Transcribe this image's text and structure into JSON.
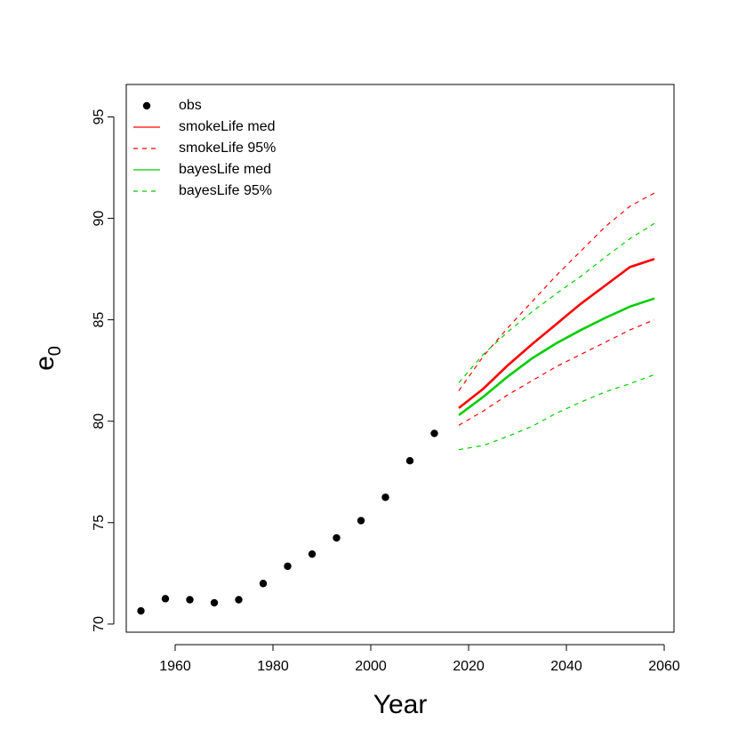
{
  "chart_data": {
    "type": "line",
    "xlabel": "Year",
    "ylabel_base": "e",
    "ylabel_sub": "0",
    "xlim": [
      1950,
      2062
    ],
    "ylim": [
      69.6,
      96.6
    ],
    "x_ticks": [
      "1960",
      "1980",
      "2000",
      "2020",
      "2040",
      "2060"
    ],
    "y_ticks": [
      "70",
      "75",
      "80",
      "85",
      "90",
      "95"
    ],
    "legend_position": "top-left",
    "grid": false,
    "series": [
      {
        "name": "obs",
        "kind": "points",
        "color": "#000000",
        "x": [
          1953,
          1958,
          1963,
          1968,
          1973,
          1978,
          1983,
          1988,
          1993,
          1998,
          2003,
          2008,
          2013
        ],
        "y": [
          70.65,
          71.25,
          71.2,
          71.05,
          71.2,
          72.0,
          72.85,
          73.45,
          74.25,
          75.1,
          76.25,
          78.05,
          79.4
        ]
      },
      {
        "name": "smokeLife med",
        "kind": "line",
        "dash": "solid",
        "color": "#ff0000",
        "x": [
          2018,
          2023,
          2028,
          2033,
          2038,
          2043,
          2048,
          2053,
          2058
        ],
        "y": [
          80.65,
          81.6,
          82.75,
          83.8,
          84.8,
          85.8,
          86.7,
          87.6,
          88.0
        ]
      },
      {
        "name": "smokeLife 95%",
        "kind": "line",
        "dash": "dashed",
        "color": "#ff0000",
        "x": [
          2018,
          2023,
          2028,
          2033,
          2038,
          2043,
          2048,
          2053,
          2058
        ],
        "y_upper": [
          81.5,
          83.2,
          84.6,
          85.9,
          87.2,
          88.4,
          89.6,
          90.6,
          91.25
        ],
        "y_lower": [
          79.8,
          80.5,
          81.3,
          82.0,
          82.7,
          83.3,
          83.9,
          84.5,
          85.0
        ]
      },
      {
        "name": "bayesLife med",
        "kind": "line",
        "dash": "solid",
        "color": "#00cc00",
        "x": [
          2018,
          2023,
          2028,
          2033,
          2038,
          2043,
          2048,
          2053,
          2058
        ],
        "y": [
          80.3,
          81.2,
          82.2,
          83.1,
          83.85,
          84.5,
          85.1,
          85.65,
          86.05
        ]
      },
      {
        "name": "bayesLife 95%",
        "kind": "line",
        "dash": "dashed",
        "color": "#00cc00",
        "x": [
          2018,
          2023,
          2028,
          2033,
          2038,
          2043,
          2048,
          2053,
          2058
        ],
        "y_upper": [
          81.9,
          83.3,
          84.4,
          85.4,
          86.3,
          87.15,
          88.1,
          89.0,
          89.75
        ],
        "y_lower": [
          78.6,
          78.8,
          79.25,
          79.75,
          80.4,
          80.95,
          81.45,
          81.85,
          82.3
        ]
      }
    ]
  }
}
